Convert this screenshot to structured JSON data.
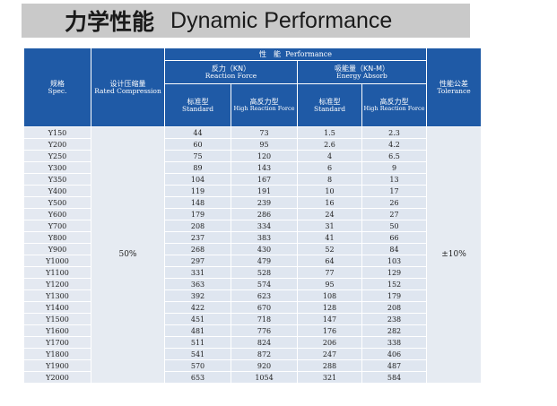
{
  "title": {
    "cn": "力学性能",
    "en": "Dynamic Performance"
  },
  "table": {
    "headers": {
      "spec_cn": "规格",
      "spec_en": "Spec.",
      "rated_cn": "设计压缩量",
      "rated_en": "Rated Compression",
      "performance_cn": "性　能",
      "performance_en": "Performance",
      "reaction_cn": "反力（KN）",
      "reaction_en": "Reaction Force",
      "energy_cn": "吸能量（KN-M）",
      "energy_en": "Energy Absorb",
      "standard_cn": "标准型",
      "standard_en": "Standard",
      "high_cn": "高反力型",
      "high_en": "High Reaction Force",
      "tolerance_cn": "性能公差",
      "tolerance_en": "Tolerance"
    },
    "rated_compression": "50%",
    "tolerance": "±10%",
    "rows": [
      [
        "Y150",
        "44",
        "73",
        "1.5",
        "2.3"
      ],
      [
        "Y200",
        "60",
        "95",
        "2.6",
        "4.2"
      ],
      [
        "Y250",
        "75",
        "120",
        "4",
        "6.5"
      ],
      [
        "Y300",
        "89",
        "143",
        "6",
        "9"
      ],
      [
        "Y350",
        "104",
        "167",
        "8",
        "13"
      ],
      [
        "Y400",
        "119",
        "191",
        "10",
        "17"
      ],
      [
        "Y500",
        "148",
        "239",
        "16",
        "26"
      ],
      [
        "Y600",
        "179",
        "286",
        "24",
        "27"
      ],
      [
        "Y700",
        "208",
        "334",
        "31",
        "50"
      ],
      [
        "Y800",
        "237",
        "383",
        "41",
        "66"
      ],
      [
        "Y900",
        "268",
        "430",
        "52",
        "84"
      ],
      [
        "Y1000",
        "297",
        "479",
        "64",
        "103"
      ],
      [
        "Y1100",
        "331",
        "528",
        "77",
        "129"
      ],
      [
        "Y1200",
        "363",
        "574",
        "95",
        "152"
      ],
      [
        "Y1300",
        "392",
        "623",
        "108",
        "179"
      ],
      [
        "Y1400",
        "422",
        "670",
        "128",
        "208"
      ],
      [
        "Y1500",
        "451",
        "718",
        "147",
        "238"
      ],
      [
        "Y1600",
        "481",
        "776",
        "176",
        "282"
      ],
      [
        "Y1700",
        "511",
        "824",
        "206",
        "338"
      ],
      [
        "Y1800",
        "541",
        "872",
        "247",
        "406"
      ],
      [
        "Y1900",
        "570",
        "920",
        "288",
        "487"
      ],
      [
        "Y2000",
        "653",
        "1054",
        "321",
        "584"
      ]
    ]
  }
}
